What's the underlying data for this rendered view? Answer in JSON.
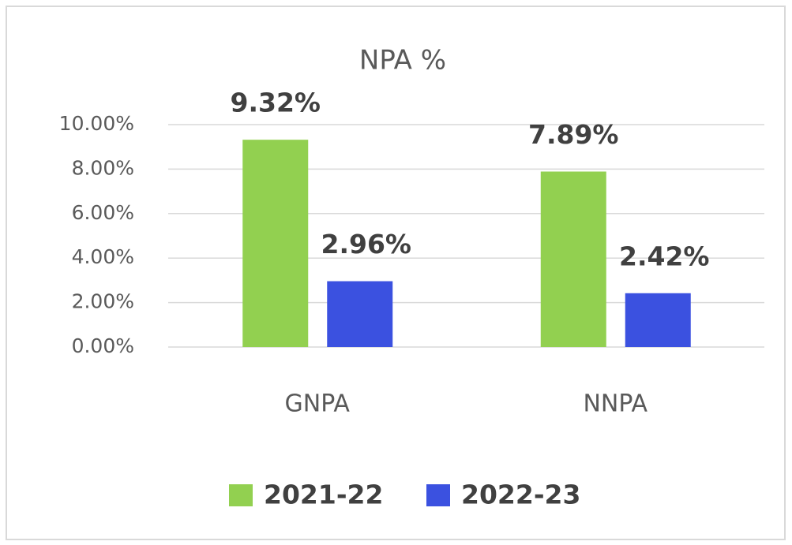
{
  "chart_data": {
    "type": "bar",
    "title": "NPA %",
    "categories": [
      "GNPA",
      "NNPA"
    ],
    "series": [
      {
        "name": "2021-22",
        "color": "#92d050",
        "values": [
          9.32,
          7.89
        ],
        "value_labels": [
          "9.32%",
          "7.89%"
        ]
      },
      {
        "name": "2022-23",
        "color": "#3b51e0",
        "values": [
          2.96,
          2.42
        ],
        "value_labels": [
          "2.96%",
          "2.42%"
        ]
      }
    ],
    "ylim": [
      0,
      10
    ],
    "yticks": [
      {
        "value": 0,
        "label": "0.00%"
      },
      {
        "value": 2,
        "label": "2.00%"
      },
      {
        "value": 4,
        "label": "4.00%"
      },
      {
        "value": 6,
        "label": "6.00%"
      },
      {
        "value": 8,
        "label": "8.00%"
      },
      {
        "value": 10,
        "label": "10.00%"
      }
    ],
    "grid": true,
    "legend": "bottom"
  }
}
